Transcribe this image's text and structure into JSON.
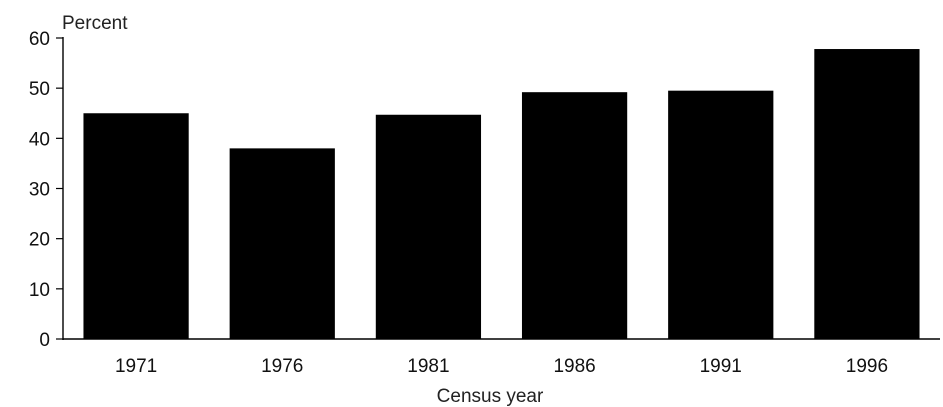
{
  "chart_data": {
    "type": "bar",
    "title": "",
    "ylabel": "Percent",
    "xlabel": "Census year",
    "categories": [
      "1971",
      "1976",
      "1981",
      "1986",
      "1991",
      "1996"
    ],
    "values": [
      45,
      38,
      44.7,
      49.2,
      49.5,
      57.8
    ],
    "ylim": [
      0,
      60
    ],
    "yticks": [
      "0",
      "10",
      "20",
      "30",
      "40",
      "50",
      "60"
    ],
    "grid": false,
    "legend": "none",
    "bar_color": "#000000",
    "axis_color": "#000000"
  }
}
